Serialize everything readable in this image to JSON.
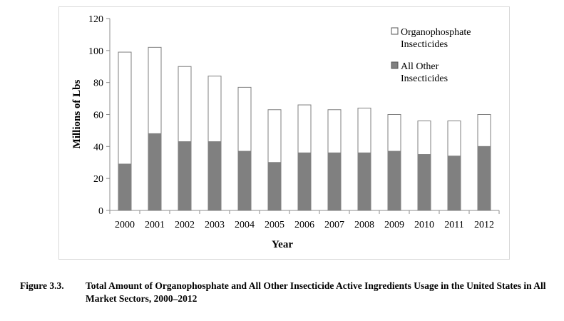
{
  "chart_data": {
    "type": "bar",
    "stacked": true,
    "categories": [
      "2000",
      "2001",
      "2002",
      "2003",
      "2004",
      "2005",
      "2006",
      "2007",
      "2008",
      "2009",
      "2010",
      "2011",
      "2012"
    ],
    "series": [
      {
        "name": "All Other Insecticides",
        "values": [
          29,
          48,
          43,
          43,
          37,
          30,
          36,
          36,
          36,
          37,
          35,
          34,
          40
        ],
        "color": "#808080"
      },
      {
        "name": "Organophosphate Insecticides",
        "values": [
          70,
          54,
          47,
          41,
          40,
          33,
          30,
          27,
          28,
          23,
          21,
          22,
          20
        ],
        "color": "#ffffff"
      }
    ],
    "xlabel": "Year",
    "ylabel": "Millions of Lbs",
    "ylim": [
      0,
      120
    ],
    "yticks": [
      0,
      20,
      40,
      60,
      80,
      100,
      120
    ],
    "grid": false,
    "legend_position": "top-right",
    "legend": [
      {
        "marker": "□",
        "label": "Organophosphate Insecticides",
        "color": "#ffffff"
      },
      {
        "marker": "■",
        "label": "All Other Insecticides",
        "color": "#808080"
      }
    ]
  },
  "caption": {
    "number": "Figure 3.3.",
    "text": "Total Amount of Organophosphate and All Other Insecticide Active Ingredients Usage in the United States in All Market Sectors, 2000–2012"
  }
}
